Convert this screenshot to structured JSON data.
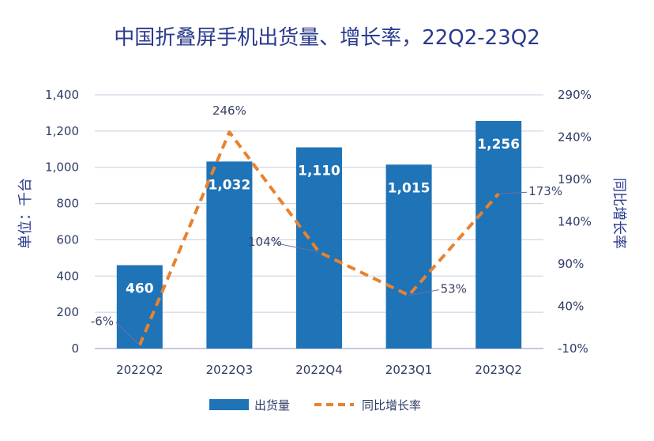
{
  "chart_data": {
    "type": "bar",
    "title": "中国折叠屏手机出货量、增长率，22Q2-23Q2",
    "categories": [
      "2022Q2",
      "2022Q3",
      "2022Q4",
      "2023Q1",
      "2023Q2"
    ],
    "series": [
      {
        "name": "出货量",
        "type": "bar",
        "axis": "left",
        "values": [
          460,
          1032,
          1110,
          1015,
          1256
        ],
        "labels": [
          "460",
          "1,032",
          "1,110",
          "1,015",
          "1,256"
        ],
        "color": "#1f73b7"
      },
      {
        "name": "同比增长率",
        "type": "line",
        "axis": "right",
        "style": "dashed",
        "values": [
          -6,
          246,
          104,
          53,
          173
        ],
        "labels": [
          "-6%",
          "246%",
          "104%",
          "53%",
          "173%"
        ],
        "color": "#e8822e"
      }
    ],
    "ylabel": "单位：千台",
    "y2label": "同比增长率",
    "ylim": [
      0,
      1400
    ],
    "y2lim": [
      -10,
      290
    ],
    "yticks": [
      "0",
      "200",
      "400",
      "600",
      "800",
      "1,000",
      "1,200",
      "1,400"
    ],
    "y2ticks": [
      "-10%",
      "40%",
      "90%",
      "140%",
      "190%",
      "240%",
      "290%"
    ],
    "grid": true,
    "legend_position": "bottom"
  }
}
